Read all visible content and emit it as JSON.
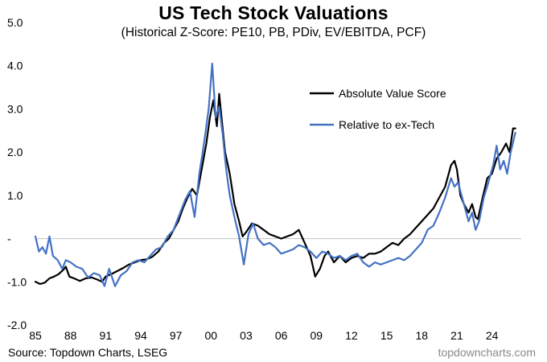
{
  "chart_data": {
    "type": "line",
    "title": "US Tech Stock Valuations",
    "subtitle": "(Historical Z-Score: PE10, PB, PDiv, EV/EBITDA, PCF)",
    "xlabel": "",
    "ylabel": "",
    "xlim": [
      1985,
      2026.5
    ],
    "ylim": [
      -2.0,
      5.0
    ],
    "y_ticks": [
      -2.0,
      -1.0,
      0,
      1.0,
      2.0,
      3.0,
      4.0,
      5.0
    ],
    "y_tick_labels": [
      "-2.0",
      "-1.0",
      "-",
      "1.0",
      "2.0",
      "3.0",
      "4.0",
      "5.0"
    ],
    "x_ticks": [
      1985,
      1988,
      1991,
      1994,
      1997,
      2000,
      2003,
      2006,
      2009,
      2012,
      2015,
      2018,
      2021,
      2024
    ],
    "x_tick_labels": [
      "85",
      "88",
      "91",
      "94",
      "97",
      "00",
      "03",
      "06",
      "09",
      "12",
      "15",
      "18",
      "21",
      "24"
    ],
    "grid": false,
    "zero_line": true,
    "legend_position": "top-right",
    "series": [
      {
        "name": "Absolute Value Score",
        "color": "#000000",
        "points": [
          [
            1985.0,
            -1.0
          ],
          [
            1985.4,
            -1.05
          ],
          [
            1985.8,
            -1.02
          ],
          [
            1986.2,
            -0.92
          ],
          [
            1986.6,
            -0.88
          ],
          [
            1987.0,
            -0.82
          ],
          [
            1987.4,
            -0.72
          ],
          [
            1987.6,
            -0.65
          ],
          [
            1987.9,
            -0.88
          ],
          [
            1988.3,
            -0.92
          ],
          [
            1988.8,
            -0.98
          ],
          [
            1989.3,
            -0.92
          ],
          [
            1989.8,
            -0.9
          ],
          [
            1990.3,
            -0.95
          ],
          [
            1990.7,
            -1.0
          ],
          [
            1991.0,
            -0.88
          ],
          [
            1991.5,
            -0.82
          ],
          [
            1992.0,
            -0.75
          ],
          [
            1992.5,
            -0.68
          ],
          [
            1993.0,
            -0.6
          ],
          [
            1993.5,
            -0.55
          ],
          [
            1994.0,
            -0.5
          ],
          [
            1994.5,
            -0.48
          ],
          [
            1995.0,
            -0.42
          ],
          [
            1995.5,
            -0.3
          ],
          [
            1996.0,
            -0.1
          ],
          [
            1996.4,
            0.0
          ],
          [
            1996.8,
            0.2
          ],
          [
            1997.2,
            0.4
          ],
          [
            1997.6,
            0.7
          ],
          [
            1998.0,
            0.95
          ],
          [
            1998.4,
            1.15
          ],
          [
            1998.8,
            1.0
          ],
          [
            1999.2,
            1.6
          ],
          [
            1999.6,
            2.2
          ],
          [
            1999.9,
            2.8
          ],
          [
            2000.2,
            3.2
          ],
          [
            2000.5,
            2.6
          ],
          [
            2000.7,
            3.35
          ],
          [
            2000.9,
            2.8
          ],
          [
            2001.2,
            2.0
          ],
          [
            2001.6,
            1.5
          ],
          [
            2002.0,
            0.8
          ],
          [
            2002.4,
            0.4
          ],
          [
            2002.7,
            0.05
          ],
          [
            2003.0,
            0.15
          ],
          [
            2003.5,
            0.35
          ],
          [
            2004.0,
            0.3
          ],
          [
            2004.5,
            0.2
          ],
          [
            2005.0,
            0.1
          ],
          [
            2005.5,
            0.05
          ],
          [
            2006.0,
            0.0
          ],
          [
            2006.5,
            0.05
          ],
          [
            2007.0,
            0.1
          ],
          [
            2007.5,
            0.2
          ],
          [
            2008.0,
            -0.1
          ],
          [
            2008.5,
            -0.4
          ],
          [
            2008.9,
            -0.88
          ],
          [
            2009.3,
            -0.7
          ],
          [
            2009.7,
            -0.4
          ],
          [
            2010.0,
            -0.3
          ],
          [
            2010.5,
            -0.55
          ],
          [
            2011.0,
            -0.4
          ],
          [
            2011.5,
            -0.55
          ],
          [
            2012.0,
            -0.45
          ],
          [
            2012.5,
            -0.4
          ],
          [
            2013.0,
            -0.45
          ],
          [
            2013.5,
            -0.35
          ],
          [
            2014.0,
            -0.35
          ],
          [
            2014.5,
            -0.3
          ],
          [
            2015.0,
            -0.2
          ],
          [
            2015.5,
            -0.1
          ],
          [
            2016.0,
            -0.15
          ],
          [
            2016.5,
            0.0
          ],
          [
            2017.0,
            0.1
          ],
          [
            2017.5,
            0.25
          ],
          [
            2018.0,
            0.4
          ],
          [
            2018.5,
            0.55
          ],
          [
            2019.0,
            0.7
          ],
          [
            2019.5,
            0.95
          ],
          [
            2020.0,
            1.2
          ],
          [
            2020.5,
            1.7
          ],
          [
            2020.8,
            1.8
          ],
          [
            2021.0,
            1.6
          ],
          [
            2021.3,
            1.0
          ],
          [
            2021.6,
            0.8
          ],
          [
            2022.0,
            0.6
          ],
          [
            2022.3,
            0.8
          ],
          [
            2022.6,
            0.5
          ],
          [
            2022.8,
            0.45
          ],
          [
            2023.2,
            0.95
          ],
          [
            2023.6,
            1.4
          ],
          [
            2024.0,
            1.5
          ],
          [
            2024.4,
            1.85
          ],
          [
            2024.8,
            2.0
          ],
          [
            2025.2,
            2.2
          ],
          [
            2025.5,
            2.0
          ],
          [
            2025.8,
            2.55
          ],
          [
            2026.0,
            2.55
          ]
        ]
      },
      {
        "name": "Relative to ex-Tech",
        "color": "#4472c4",
        "points": [
          [
            1985.0,
            0.05
          ],
          [
            1985.3,
            -0.3
          ],
          [
            1985.6,
            -0.2
          ],
          [
            1985.9,
            -0.35
          ],
          [
            1986.2,
            0.05
          ],
          [
            1986.5,
            -0.4
          ],
          [
            1986.9,
            -0.5
          ],
          [
            1987.3,
            -0.7
          ],
          [
            1987.6,
            -0.5
          ],
          [
            1988.0,
            -0.55
          ],
          [
            1988.5,
            -0.65
          ],
          [
            1989.0,
            -0.7
          ],
          [
            1989.5,
            -0.9
          ],
          [
            1990.0,
            -0.8
          ],
          [
            1990.5,
            -0.85
          ],
          [
            1990.9,
            -1.1
          ],
          [
            1991.3,
            -0.7
          ],
          [
            1991.8,
            -1.1
          ],
          [
            1992.3,
            -0.85
          ],
          [
            1992.8,
            -0.75
          ],
          [
            1993.3,
            -0.55
          ],
          [
            1993.8,
            -0.5
          ],
          [
            1994.3,
            -0.55
          ],
          [
            1994.8,
            -0.4
          ],
          [
            1995.3,
            -0.25
          ],
          [
            1995.8,
            -0.2
          ],
          [
            1996.3,
            0.05
          ],
          [
            1996.8,
            0.2
          ],
          [
            1997.3,
            0.55
          ],
          [
            1997.8,
            0.9
          ],
          [
            1998.2,
            1.1
          ],
          [
            1998.6,
            0.5
          ],
          [
            1999.0,
            1.5
          ],
          [
            1999.4,
            2.2
          ],
          [
            1999.8,
            3.0
          ],
          [
            2000.1,
            4.05
          ],
          [
            2000.4,
            2.8
          ],
          [
            2000.7,
            3.05
          ],
          [
            2001.0,
            2.4
          ],
          [
            2001.3,
            1.6
          ],
          [
            2001.6,
            1.0
          ],
          [
            2002.0,
            0.5
          ],
          [
            2002.4,
            0.05
          ],
          [
            2002.8,
            -0.6
          ],
          [
            2003.2,
            0.1
          ],
          [
            2003.6,
            0.35
          ],
          [
            2004.0,
            0.0
          ],
          [
            2004.5,
            -0.15
          ],
          [
            2005.0,
            -0.1
          ],
          [
            2005.5,
            -0.2
          ],
          [
            2006.0,
            -0.35
          ],
          [
            2006.5,
            -0.3
          ],
          [
            2007.0,
            -0.25
          ],
          [
            2007.5,
            -0.15
          ],
          [
            2008.0,
            -0.2
          ],
          [
            2008.5,
            -0.3
          ],
          [
            2009.0,
            -0.45
          ],
          [
            2009.5,
            -0.3
          ],
          [
            2010.0,
            -0.35
          ],
          [
            2010.5,
            -0.45
          ],
          [
            2011.0,
            -0.4
          ],
          [
            2011.5,
            -0.5
          ],
          [
            2012.0,
            -0.4
          ],
          [
            2012.5,
            -0.35
          ],
          [
            2013.0,
            -0.55
          ],
          [
            2013.5,
            -0.65
          ],
          [
            2014.0,
            -0.55
          ],
          [
            2014.5,
            -0.6
          ],
          [
            2015.0,
            -0.55
          ],
          [
            2015.5,
            -0.5
          ],
          [
            2016.0,
            -0.45
          ],
          [
            2016.5,
            -0.5
          ],
          [
            2017.0,
            -0.4
          ],
          [
            2017.5,
            -0.25
          ],
          [
            2018.0,
            -0.1
          ],
          [
            2018.5,
            0.2
          ],
          [
            2019.0,
            0.3
          ],
          [
            2019.5,
            0.6
          ],
          [
            2020.0,
            0.95
          ],
          [
            2020.5,
            1.4
          ],
          [
            2020.8,
            1.2
          ],
          [
            2021.1,
            1.3
          ],
          [
            2021.4,
            1.0
          ],
          [
            2021.7,
            0.7
          ],
          [
            2022.0,
            0.4
          ],
          [
            2022.3,
            0.6
          ],
          [
            2022.6,
            0.2
          ],
          [
            2022.9,
            0.4
          ],
          [
            2023.3,
            0.95
          ],
          [
            2023.7,
            1.3
          ],
          [
            2024.1,
            1.7
          ],
          [
            2024.4,
            2.15
          ],
          [
            2024.7,
            1.6
          ],
          [
            2025.0,
            1.8
          ],
          [
            2025.3,
            1.5
          ],
          [
            2025.6,
            2.0
          ],
          [
            2026.0,
            2.45
          ]
        ]
      }
    ]
  },
  "footer": {
    "source": "Source: Topdown Charts, LSEG",
    "brand": "topdowncharts.com"
  }
}
